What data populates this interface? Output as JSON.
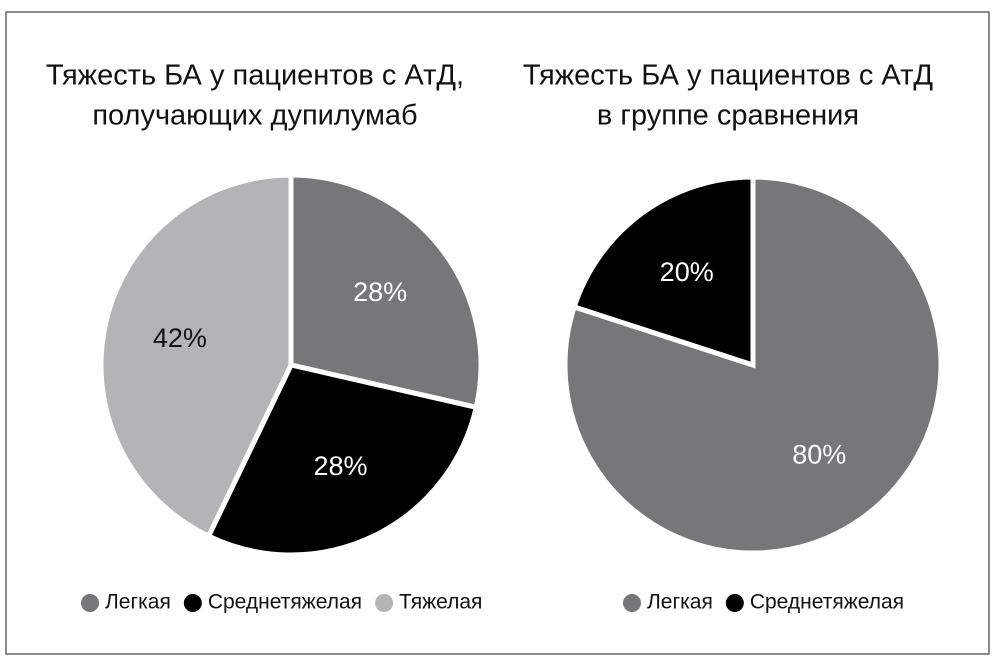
{
  "chart_data": [
    {
      "type": "pie",
      "title": [
        "Тяжесть БА у пациентов с АтД,",
        "получающих дупилумаб"
      ],
      "categories": [
        "Легкая",
        "Среднетяжелая",
        "Тяжелая"
      ],
      "values": [
        28,
        28,
        42
      ],
      "value_labels": [
        "28%",
        "28%",
        "42%"
      ],
      "colors": [
        "#77777a",
        "#000000",
        "#b4b4b6"
      ]
    },
    {
      "type": "pie",
      "title": [
        "Тяжесть БА у пациентов с АтД",
        "в группе сравнения"
      ],
      "categories": [
        "Легкая",
        "Среднетяжелая"
      ],
      "values": [
        80,
        20
      ],
      "value_labels": [
        "80%",
        "20%"
      ],
      "colors": [
        "#77777a",
        "#000000"
      ]
    }
  ]
}
